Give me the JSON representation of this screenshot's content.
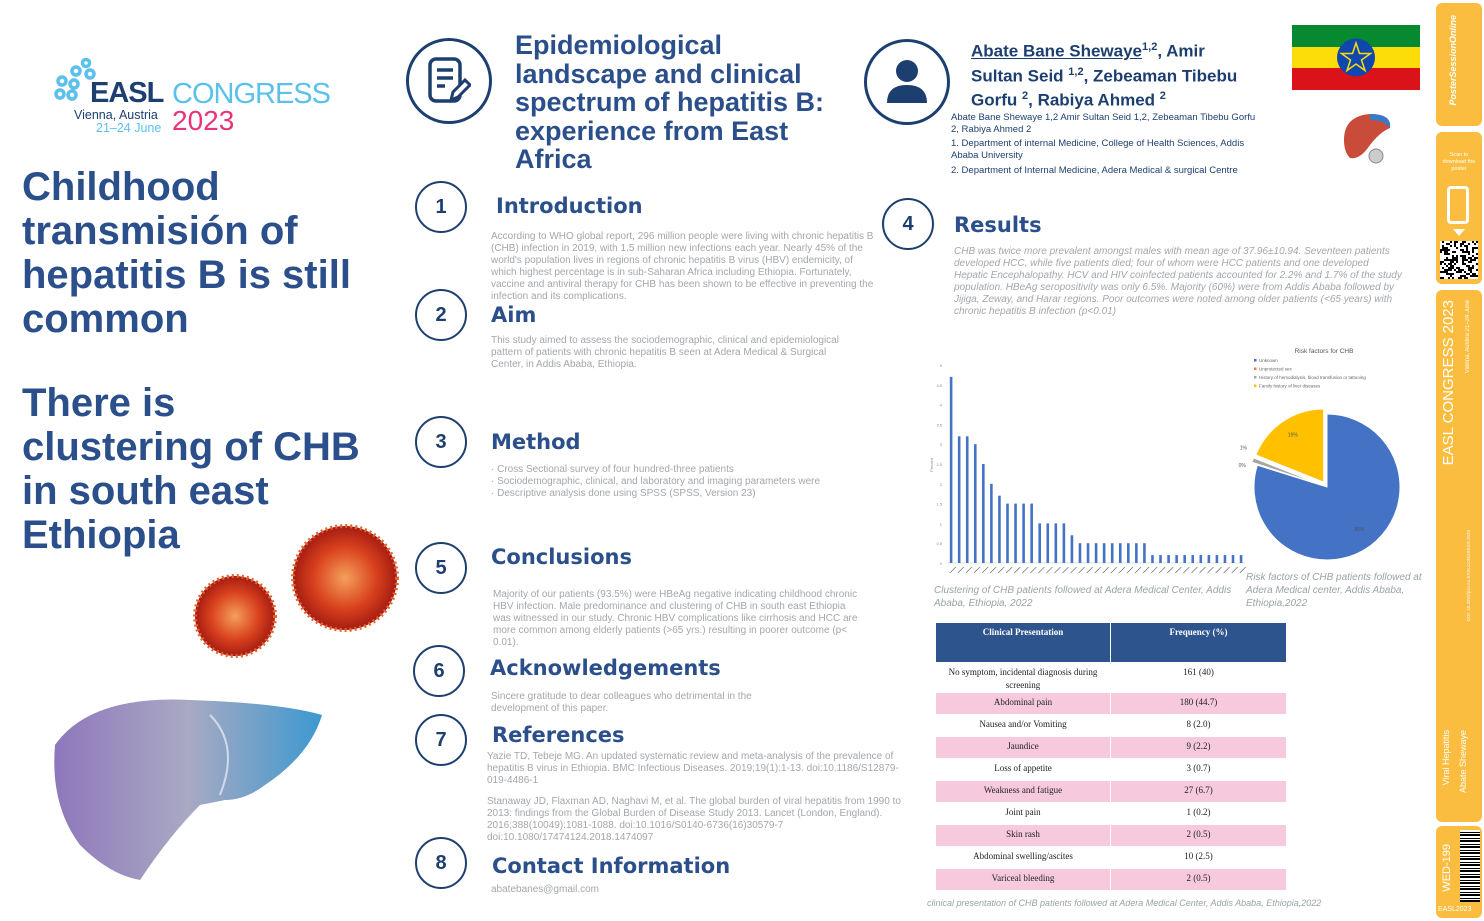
{
  "logo": {
    "brand": "EASL",
    "congress": "CONGRESS",
    "year": "2023",
    "city": "Vienna, Austria",
    "dates": "21–24 June"
  },
  "headlines": [
    {
      "lines": [
        "Childhood",
        "transmisión of",
        "hepatitis B is still",
        "common"
      ]
    },
    {
      "lines": [
        "There is",
        "clustering of CHB",
        "in south east",
        "Ethiopia"
      ]
    }
  ],
  "title": {
    "lines": [
      "Epidemiological",
      "landscape and clinical",
      "spectrum of hepatitis B:",
      "experience from East",
      "Africa"
    ]
  },
  "authors": {
    "main_first": "Abate Bane Shewaye",
    "sup1": "1,2",
    "main_rest1": ", Amir",
    "main_line2": "Sultan Seid ",
    "sup2": "1,2",
    "main_rest2": ", Zebeaman Tibebu",
    "main_line3": "Gorfu ",
    "sup3": "2",
    "main_rest3": ", Rabiya Ahmed ",
    "sup4": "2",
    "small": "Abate Bane Shewaye 1,2  Amir Sultan Seid 1,2, Zebeaman Tibebu Gorfu 2, Rabiya Ahmed 2",
    "affiliations": [
      "1.      Department of internal Medicine, College of Health Sciences, Addis Ababa University",
      "2.      Department of Internal Medicine, Adera Medical & surgical Centre"
    ]
  },
  "sections": {
    "intro": {
      "num": "1",
      "heading": "Introduction",
      "text": "According to WHO global report, 296 million people were living with chronic hepatitis B (CHB) infection in 2019, with 1.5 million new infections each year. Nearly 45% of the world's population lives in regions of chronic hepatitis B virus (HBV) endemicity, of which highest percentage is in sub-Saharan Africa including Ethiopia. Fortunately, vaccine and antiviral therapy for CHB has been shown to be effective in preventing the infection and its complications."
    },
    "aim": {
      "num": "2",
      "heading": "Aim",
      "text": "This study aimed to assess the sociodemographic, clinical and epidemiological pattern of patients with chronic hepatitis B seen at Adera Medical & Surgical Center, in Addis Ababa, Ethiopia."
    },
    "method": {
      "num": "3",
      "heading": "Method",
      "items": [
        "Cross Sectional survey of four hundred-three patients",
        "Sociodemographic, clinical, and laboratory and imaging parameters were",
        "Descriptive analysis done using SPSS (SPSS, Version 23)"
      ]
    },
    "results": {
      "num": "4",
      "heading": "Results",
      "text": "CHB was twice more prevalent amongst males with mean age of 37.96±10.94. Seventeen patients developed HCC, while five patients died; four of whom were HCC patients and one developed Hepatic Encephalopathy. HCV and HIV coinfected patients accounted for 2.2% and 1.7% of the study population. HBeAg seropositivity was only 6.5%. Majority (60%) were from Addis Ababa followed by Jijiga, Zeway, and Harar regions. Poor outcomes were noted among older patients (<65 years) with chronic hepatitis B infection (p<0.01)"
    },
    "conclusions": {
      "num": "5",
      "heading": "Conclusions",
      "text": "Majority of our patients (93.5%) were HBeAg negative indicating childhood chronic HBV infection. Male predominance and clustering of CHB in south east Ethiopia was witnessed in our study. Chronic HBV complications like cirrhosis and HCC are more common among elderly patients (>65 yrs.) resulting in poorer outcome (p< 0.01)."
    },
    "ack": {
      "num": "6",
      "heading": "Acknowledgements",
      "text": "Sincere gratitude to dear colleagues who detrimental in the development of this paper."
    },
    "refs": {
      "num": "7",
      "heading": "References",
      "items": [
        "Yazie TD, Tebeje MG. An updated systematic review and meta-analysis of the prevalence of hepatitis B virus in Ethiopia. BMC Infectious Diseases. 2019;19(1):1-13. doi:10.1186/S12879-019-4486-1",
        "Stanaway JD, Flaxman AD, Naghavi M, et al. The global burden of viral hepatitis from 1990 to 2013: findings from the Global Burden of Disease Study 2013. Lancet (London, England). 2016;388(10049):1081-1088. doi:10.1016/S0140-6736(16)30579-7 doi:10.1080/17474124.2018.1474097"
      ]
    },
    "contact": {
      "num": "8",
      "heading": "Contact Information",
      "email": "abatebanes@gmail.com"
    }
  },
  "chart_data": [
    {
      "type": "bar",
      "title": "",
      "xlabel": "",
      "ylabel": "Percent",
      "ylim": [
        0,
        5
      ],
      "yticks": [
        "0",
        "0.5",
        "1",
        "1.5",
        "2",
        "2.5",
        "3",
        "3.5",
        "4",
        "4.5",
        "5"
      ],
      "values": [
        4.7,
        3.2,
        3.2,
        3.0,
        2.5,
        2.0,
        1.7,
        1.5,
        1.5,
        1.5,
        1.5,
        1,
        1,
        1,
        1,
        0.7,
        0.5,
        0.5,
        0.5,
        0.5,
        0.5,
        0.5,
        0.5,
        0.5,
        0.5,
        0.2,
        0.2,
        0.2,
        0.2,
        0.2,
        0.2,
        0.2,
        0.2,
        0.2,
        0.2,
        0.2,
        0.2
      ],
      "color": "#4472c4",
      "caption": "Clustering of CHB patients followed at Adera Medical Center, Addis Ababa, Ethiopia, 2022"
    },
    {
      "type": "pie",
      "title": "Risk factors for CHB",
      "legend_position": "top-left",
      "slices": [
        {
          "label": "Unknown",
          "value": 80,
          "display": "80%",
          "color": "#4472c4"
        },
        {
          "label": "Unprotected sex",
          "value": 0.2,
          "display": "0%",
          "color": "#ed7d31"
        },
        {
          "label": "History of hemodialysis, blood transfusion or tattooing",
          "value": 1,
          "display": "1%",
          "color": "#a5a5a5"
        },
        {
          "label": "Family history of liver diseases",
          "value": 19,
          "display": "19%",
          "color": "#ffc000"
        }
      ],
      "caption": "Risk factors of CHB patients followed at Adera Medical center, Addis Ababa, Ethiopia,2022"
    },
    {
      "type": "table",
      "headers": [
        "Clinical Presentation",
        "Frequency (%)"
      ],
      "rows": [
        [
          "No symptom, incidental diagnosis during screening",
          "161 (40)"
        ],
        [
          "Abdominal pain",
          "180 (44.7)"
        ],
        [
          "Nausea and/or Vomiting",
          "8 (2.0)"
        ],
        [
          "Jaundice",
          "9 (2.2)"
        ],
        [
          "Loss of appetite",
          "3 (0.7)"
        ],
        [
          "Weakness and fatigue",
          "27 (6.7)"
        ],
        [
          "Joint pain",
          "1 (0.2)"
        ],
        [
          "Skin rash",
          "2 (0.5)"
        ],
        [
          "Abdominal swelling/ascites",
          "10 (2.5)"
        ],
        [
          "Variceal bleeding",
          "2 (0.5)"
        ]
      ],
      "caption": "clinical presentation of CHB patients followed at Adera Medical Center, Addis Ababa, Ethiopia,2022"
    }
  ],
  "sidebar": {
    "pso": "PosterSessionOnline",
    "scan": "Scan to download the poster",
    "congress": "EASL CONGRESS 2023",
    "city": "Vienna, Austria 21–24 June",
    "doi": "DOI: 10.3252/pso.eu.EASLCONGRESS.2023",
    "topic": "Viral Hepatitis",
    "author": "Abate Shewaye",
    "code": "WED-199",
    "footer": "EASL2023"
  },
  "colors": {
    "heading": "#2b4f8a",
    "navy": "#1d3f70",
    "sidebar": "#fbbd3f",
    "table_header": "#2d548c",
    "table_pink": "#f7c9dc"
  }
}
